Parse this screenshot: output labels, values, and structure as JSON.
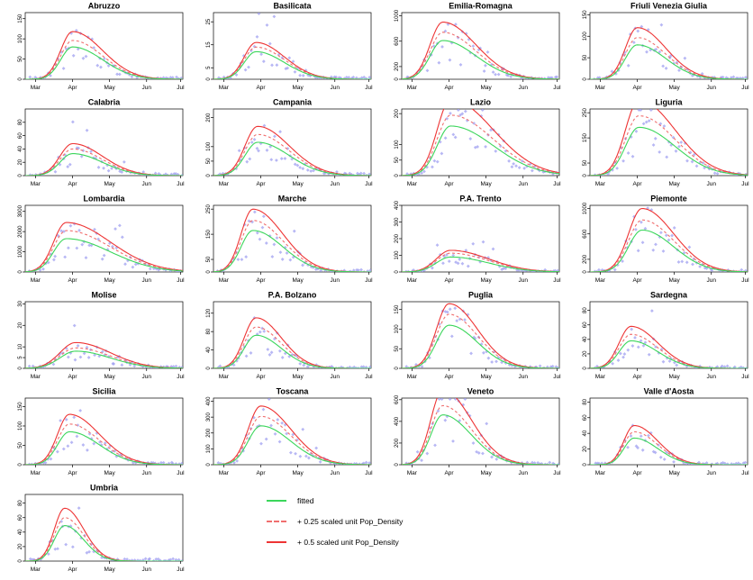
{
  "page": {
    "background": "#ffffff",
    "description": "Grid of fitted epidemic curves by Italian region with Pop_Density scaled effects"
  },
  "colors": {
    "fitted": "#3bd65b",
    "plus025": "#f06f6f",
    "plus05": "#ee3434",
    "scatter": "#9f9ff0",
    "axis": "#000000",
    "title": "#000000"
  },
  "legend": {
    "items": [
      {
        "label": "fitted",
        "style": "solid",
        "color": "#3bd65b"
      },
      {
        "label": "+ 0.25 scaled unit Pop_Density",
        "style": "dashed",
        "color": "#f06f6f"
      },
      {
        "label": "+ 0.5 scaled unit Pop_Density",
        "style": "solid",
        "color": "#ee3434"
      }
    ]
  },
  "chart_data": {
    "type": "line",
    "x_tick_labels": [
      "Mar",
      "Apr",
      "May",
      "Jun",
      "Jul"
    ],
    "x_tick_positions": [
      0.065,
      0.3,
      0.535,
      0.77,
      0.985
    ],
    "series_legend": [
      "fitted",
      "+ 0.25 scaled unit Pop_Density",
      "+ 0.5 scaled unit Pop_Density"
    ],
    "grid": false,
    "charts": [
      {
        "title": "Abruzzo",
        "yticks": [
          0,
          50,
          100,
          150
        ],
        "ylim": [
          0,
          165
        ],
        "peaks": {
          "fitted": 80,
          "plus025": 96,
          "plus05": 118
        },
        "peak_x": 0.3,
        "rise": 0.075,
        "fall": 0.19,
        "seed": 1
      },
      {
        "title": "Basilicata",
        "yticks": [
          0,
          5,
          15,
          25
        ],
        "ylim": [
          0,
          29
        ],
        "peaks": {
          "fitted": 12,
          "plus025": 14,
          "plus05": 16
        },
        "peak_x": 0.27,
        "rise": 0.075,
        "fall": 0.18,
        "seed": 2
      },
      {
        "title": "Emilia-Romagna",
        "yticks": [
          0,
          200,
          600,
          1000
        ],
        "ylim": [
          0,
          1050
        ],
        "peaks": {
          "fitted": 610,
          "plus025": 740,
          "plus05": 900
        },
        "peak_x": 0.26,
        "rise": 0.08,
        "fall": 0.21,
        "seed": 3
      },
      {
        "title": "Friuli Venezia Giulia",
        "yticks": [
          0,
          50,
          100,
          150
        ],
        "ylim": [
          0,
          155
        ],
        "peaks": {
          "fitted": 80,
          "plus025": 97,
          "plus05": 120
        },
        "peak_x": 0.3,
        "rise": 0.075,
        "fall": 0.18,
        "seed": 4
      },
      {
        "title": "Calabria",
        "yticks": [
          0,
          20,
          40,
          60,
          80
        ],
        "ylim": [
          0,
          100
        ],
        "peaks": {
          "fitted": 33,
          "plus025": 40,
          "plus05": 48
        },
        "peak_x": 0.3,
        "rise": 0.08,
        "fall": 0.19,
        "seed": 5
      },
      {
        "title": "Campania",
        "yticks": [
          0,
          50,
          100,
          200
        ],
        "ylim": [
          0,
          230
        ],
        "peaks": {
          "fitted": 115,
          "plus025": 142,
          "plus05": 170
        },
        "peak_x": 0.28,
        "rise": 0.08,
        "fall": 0.2,
        "seed": 6
      },
      {
        "title": "Lazio",
        "yticks": [
          0,
          50,
          100,
          200
        ],
        "ylim": [
          0,
          215
        ],
        "peaks": {
          "fitted": 160,
          "plus025": 195,
          "plus05": 245
        },
        "peak_x": 0.31,
        "rise": 0.085,
        "fall": 0.27,
        "seed": 7
      },
      {
        "title": "Liguria",
        "yticks": [
          0,
          50,
          150,
          250
        ],
        "ylim": [
          0,
          265
        ],
        "peaks": {
          "fitted": 192,
          "plus025": 238,
          "plus05": 300
        },
        "peak_x": 0.31,
        "rise": 0.085,
        "fall": 0.23,
        "seed": 8
      },
      {
        "title": "Lombardia",
        "yticks": [
          0,
          1000,
          2000,
          3000
        ],
        "ylim": [
          0,
          3300
        ],
        "peaks": {
          "fitted": 1650,
          "plus025": 2050,
          "plus05": 2450
        },
        "peak_x": 0.26,
        "rise": 0.08,
        "fall": 0.28,
        "seed": 9
      },
      {
        "title": "Marche",
        "yticks": [
          0,
          50,
          150,
          250
        ],
        "ylim": [
          0,
          265
        ],
        "peaks": {
          "fitted": 165,
          "plus025": 205,
          "plus05": 250
        },
        "peak_x": 0.25,
        "rise": 0.075,
        "fall": 0.19,
        "seed": 10
      },
      {
        "title": "P.A. Trento",
        "yticks": [
          0,
          100,
          200,
          300,
          400
        ],
        "ylim": [
          0,
          400
        ],
        "peaks": {
          "fitted": 90,
          "plus025": 113,
          "plus05": 130
        },
        "peak_x": 0.31,
        "rise": 0.09,
        "fall": 0.24,
        "seed": 11
      },
      {
        "title": "Piemonte",
        "yticks": [
          0,
          200,
          600,
          1000
        ],
        "ylim": [
          0,
          1050
        ],
        "peaks": {
          "fitted": 660,
          "plus025": 820,
          "plus05": 1000
        },
        "peak_x": 0.33,
        "rise": 0.085,
        "fall": 0.2,
        "seed": 12
      },
      {
        "title": "Molise",
        "yticks": [
          0,
          5,
          10,
          20,
          30
        ],
        "ylim": [
          0,
          31
        ],
        "peaks": {
          "fitted": 8,
          "plus025": 9.5,
          "plus05": 12
        },
        "peak_x": 0.32,
        "rise": 0.1,
        "fall": 0.22,
        "seed": 13
      },
      {
        "title": "P.A. Bolzano",
        "yticks": [
          0,
          40,
          80,
          120
        ],
        "ylim": [
          0,
          145
        ],
        "peaks": {
          "fitted": 72,
          "plus025": 90,
          "plus05": 110
        },
        "peak_x": 0.27,
        "rise": 0.075,
        "fall": 0.16,
        "seed": 14
      },
      {
        "title": "Puglia",
        "yticks": [
          0,
          50,
          100,
          150
        ],
        "ylim": [
          0,
          170
        ],
        "peaks": {
          "fitted": 110,
          "plus025": 138,
          "plus05": 165
        },
        "peak_x": 0.3,
        "rise": 0.08,
        "fall": 0.18,
        "seed": 15
      },
      {
        "title": "Sardegna",
        "yticks": [
          0,
          20,
          40,
          60,
          80
        ],
        "ylim": [
          0,
          92
        ],
        "peaks": {
          "fitted": 38,
          "plus025": 47,
          "plus05": 58
        },
        "peak_x": 0.26,
        "rise": 0.075,
        "fall": 0.17,
        "seed": 16
      },
      {
        "title": "Sicilia",
        "yticks": [
          0,
          50,
          100,
          150
        ],
        "ylim": [
          0,
          172
        ],
        "peaks": {
          "fitted": 85,
          "plus025": 105,
          "plus05": 130
        },
        "peak_x": 0.28,
        "rise": 0.075,
        "fall": 0.19,
        "seed": 17
      },
      {
        "title": "Toscana",
        "yticks": [
          0,
          100,
          200,
          300,
          400
        ],
        "ylim": [
          0,
          420
        ],
        "peaks": {
          "fitted": 245,
          "plus025": 305,
          "plus05": 370
        },
        "peak_x": 0.3,
        "rise": 0.08,
        "fall": 0.19,
        "seed": 18
      },
      {
        "title": "Veneto",
        "yticks": [
          0,
          200,
          400,
          600
        ],
        "ylim": [
          0,
          615
        ],
        "peaks": {
          "fitted": 460,
          "plus025": 545,
          "plus05": 690
        },
        "peak_x": 0.26,
        "rise": 0.075,
        "fall": 0.18,
        "seed": 19
      },
      {
        "title": "Valle d'Aosta",
        "yticks": [
          0,
          20,
          40,
          60,
          80
        ],
        "ylim": [
          0,
          85
        ],
        "peaks": {
          "fitted": 34,
          "plus025": 42,
          "plus05": 50
        },
        "peak_x": 0.28,
        "rise": 0.065,
        "fall": 0.15,
        "seed": 20
      },
      {
        "title": "Umbria",
        "yticks": [
          0,
          20,
          40,
          60,
          80
        ],
        "ylim": [
          0,
          92
        ],
        "peaks": {
          "fitted": 49,
          "plus025": 60,
          "plus05": 73
        },
        "peak_x": 0.25,
        "rise": 0.065,
        "fall": 0.12,
        "seed": 21
      }
    ]
  }
}
